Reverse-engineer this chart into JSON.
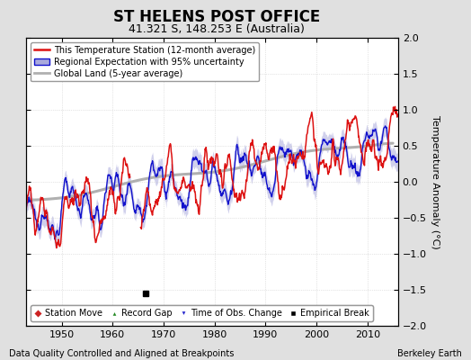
{
  "title": "ST HELENS POST OFFICE",
  "subtitle": "41.321 S, 148.253 E (Australia)",
  "ylabel": "Temperature Anomaly (°C)",
  "ylim": [
    -2,
    2
  ],
  "xlim": [
    1943,
    2016
  ],
  "yticks": [
    -2,
    -1.5,
    -1,
    -0.5,
    0,
    0.5,
    1,
    1.5,
    2
  ],
  "xticks": [
    1950,
    1960,
    1970,
    1980,
    1990,
    2000,
    2010
  ],
  "footer_left": "Data Quality Controlled and Aligned at Breakpoints",
  "footer_right": "Berkeley Earth",
  "empirical_break_x": 1966.5,
  "empirical_break_y": -1.55,
  "bg_color": "#e0e0e0",
  "plot_bg_color": "#ffffff",
  "red_color": "#dd1111",
  "blue_color": "#1111cc",
  "blue_fill_color": "#aaaadd",
  "gray_color": "#b0b0b0",
  "legend1_labels": [
    "This Temperature Station (12-month average)",
    "Regional Expectation with 95% uncertainty",
    "Global Land (5-year average)"
  ],
  "legend2_labels": [
    "Station Move",
    "Record Gap",
    "Time of Obs. Change",
    "Empirical Break"
  ],
  "grid_color": "#cccccc",
  "title_fontsize": 12,
  "subtitle_fontsize": 9,
  "tick_fontsize": 8,
  "ylabel_fontsize": 8,
  "legend_fontsize": 7,
  "footer_fontsize": 7
}
